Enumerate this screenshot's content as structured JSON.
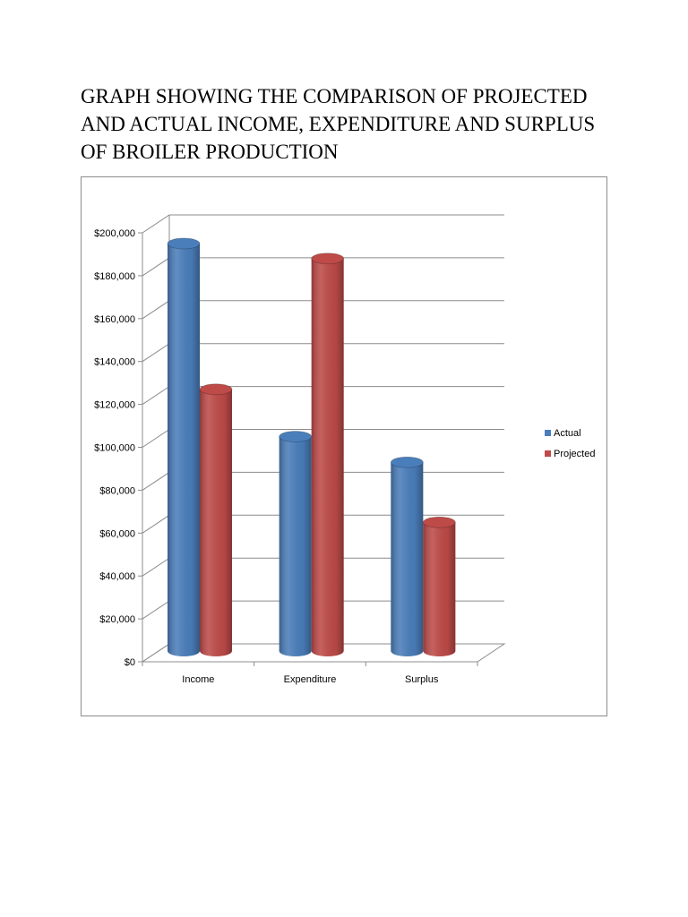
{
  "document": {
    "title_lines": [
      "GRAPH SHOWING THE COMPARISON OF PROJECTED",
      "AND ACTUAL INCOME, EXPENDITURE AND SURPLUS",
      "OF BROILER PRODUCTION"
    ]
  },
  "chart_data": {
    "type": "bar",
    "title": "",
    "xlabel": "",
    "ylabel": "",
    "categories": [
      "Income",
      "Expenditure",
      "Surplus"
    ],
    "series": [
      {
        "name": "Actual",
        "color": "#4a7ebb",
        "values": [
          190000,
          100000,
          88000
        ]
      },
      {
        "name": "Projected",
        "color": "#be4b48",
        "values": [
          122000,
          183000,
          60000
        ]
      }
    ],
    "ylim": [
      0,
      200000
    ],
    "yticks": [
      0,
      20000,
      40000,
      60000,
      80000,
      100000,
      120000,
      140000,
      160000,
      180000,
      200000
    ],
    "ytick_labels": [
      "$0",
      "$20,000",
      "$40,000",
      "$60,000",
      "$80,000",
      "$100,000",
      "$120,000",
      "$140,000",
      "$160,000",
      "$180,000",
      "$200,000"
    ],
    "grid": true,
    "legend_position": "right",
    "style": "3d-cylinder"
  }
}
